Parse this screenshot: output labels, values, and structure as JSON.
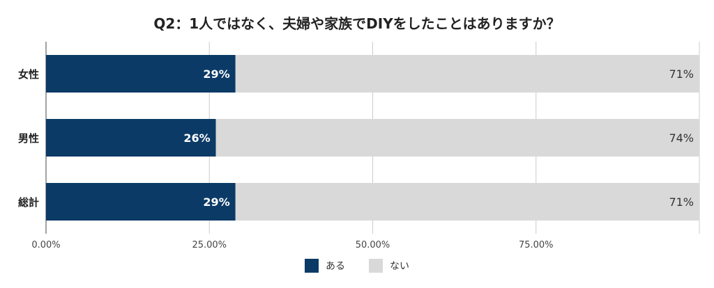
{
  "chart_data": {
    "type": "bar",
    "orientation": "horizontal",
    "stacked": true,
    "title": "Q2：1人ではなく、夫婦や家族でDIYをしたことはありますか？",
    "categories": [
      "女性",
      "男性",
      "総計"
    ],
    "series": [
      {
        "name": "ある",
        "color": "#0b3a66",
        "values": [
          29,
          26,
          29
        ]
      },
      {
        "name": "ない",
        "color": "#d9d9d9",
        "values": [
          71,
          74,
          71
        ]
      }
    ],
    "data_labels": [
      [
        "29%",
        "26%",
        "29%"
      ],
      [
        "71%",
        "74%",
        "71%"
      ]
    ],
    "xlim": [
      0,
      100
    ],
    "x_ticks": [
      0,
      25,
      50,
      75
    ],
    "x_tick_labels": [
      "0.00%",
      "25.00%",
      "50.00%",
      "75.00%"
    ],
    "grid": true,
    "legend_position": "bottom"
  }
}
